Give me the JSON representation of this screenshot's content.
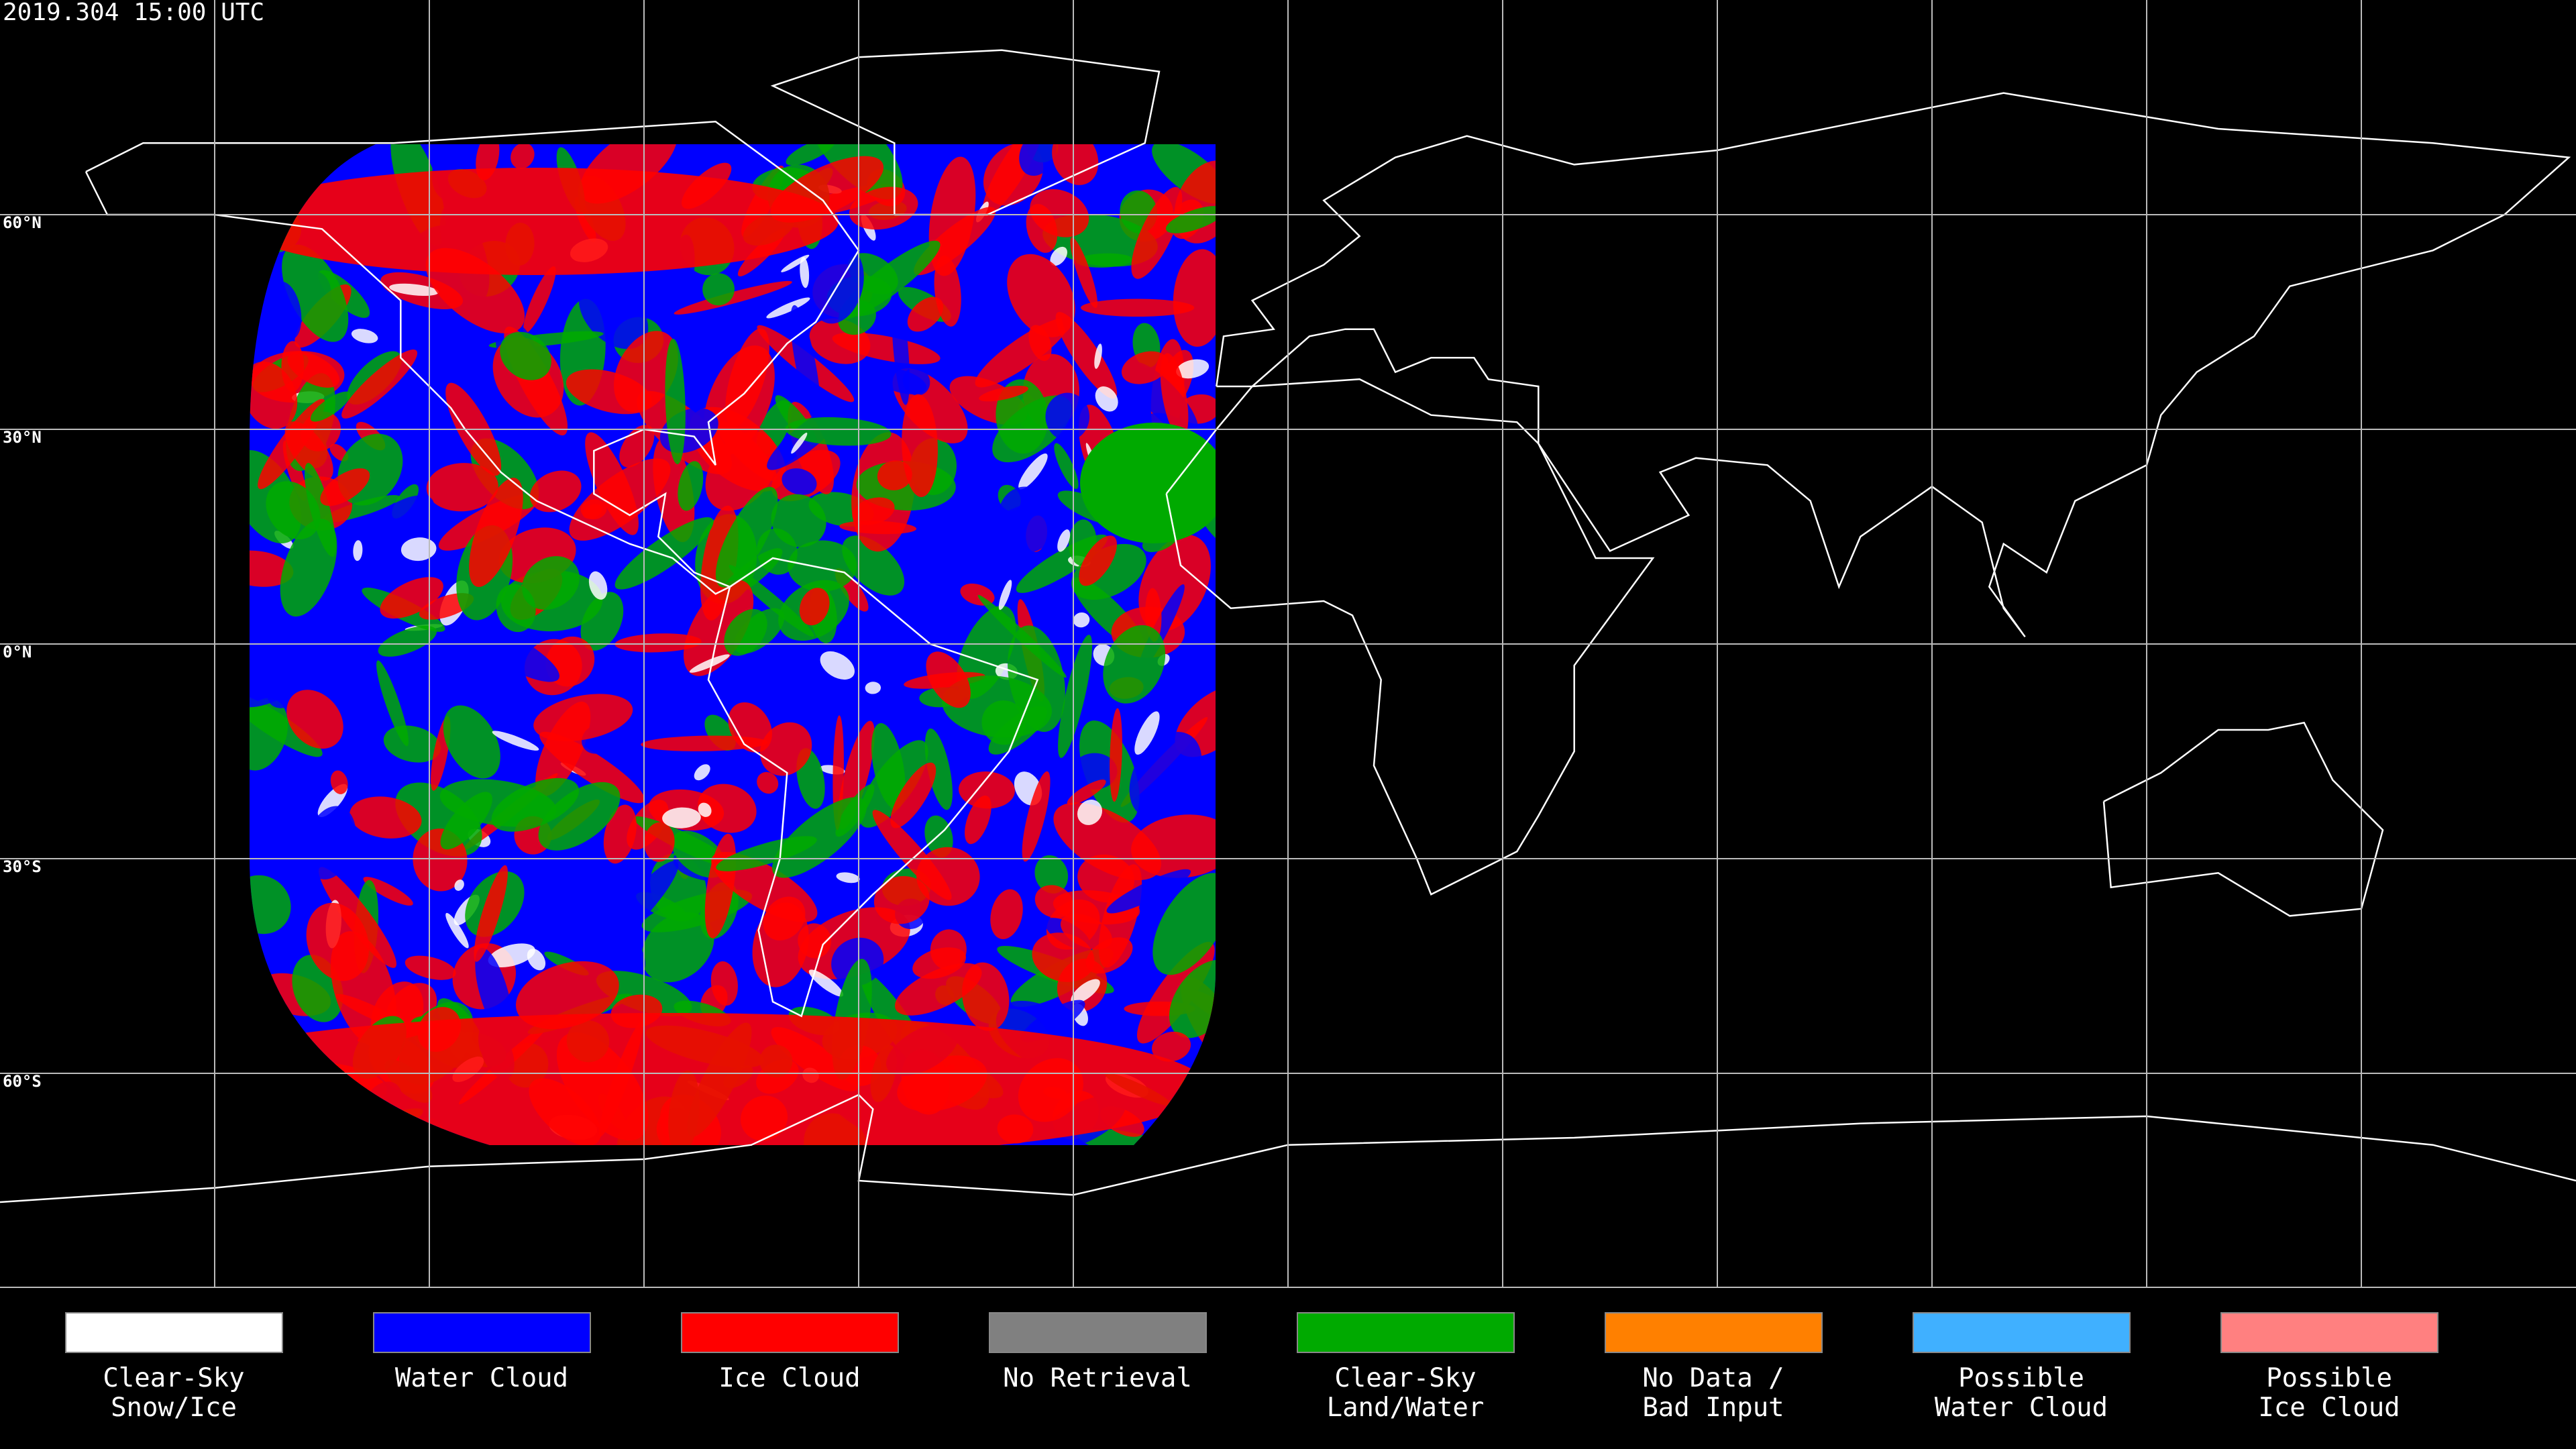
{
  "header": {
    "timestamp": "2019.304 15:00 UTC"
  },
  "map": {
    "lat_labels": [
      "60°N",
      "30°N",
      "0°N",
      "30°S",
      "60°S"
    ]
  },
  "legend": {
    "items": [
      {
        "label": [
          "Clear-Sky",
          "Snow/Ice"
        ],
        "color": "#ffffff"
      },
      {
        "label": [
          "Water Cloud"
        ],
        "color": "#0000ff"
      },
      {
        "label": [
          "Ice Cloud"
        ],
        "color": "#ff0000"
      },
      {
        "label": [
          "No Retrieval"
        ],
        "color": "#808080"
      },
      {
        "label": [
          "Clear-Sky",
          "Land/Water"
        ],
        "color": "#00aa00"
      },
      {
        "label": [
          "No Data /",
          "Bad Input"
        ],
        "color": "#ff8000"
      },
      {
        "label": [
          "Possible",
          "Water Cloud"
        ],
        "color": "#40b0ff"
      },
      {
        "label": [
          "Possible",
          "Ice Cloud"
        ],
        "color": "#ff8080"
      }
    ]
  }
}
